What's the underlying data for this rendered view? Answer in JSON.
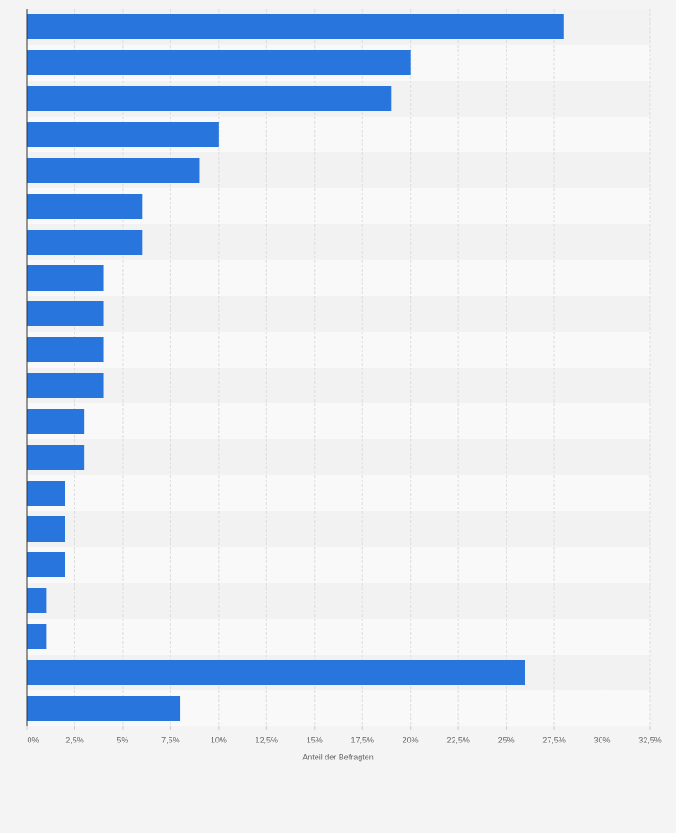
{
  "chart_data": {
    "type": "bar",
    "orientation": "horizontal",
    "categories": [
      null,
      null,
      null,
      null,
      null,
      null,
      null,
      null,
      null,
      null,
      null,
      null,
      null,
      null,
      null,
      null,
      null,
      null,
      null,
      null
    ],
    "values": [
      28,
      20,
      19,
      10,
      9,
      6,
      6,
      4,
      4,
      4,
      4,
      3,
      3,
      2,
      2,
      2,
      1,
      1,
      26,
      8
    ],
    "color": "#2876dd",
    "xlabel": "Anteil der Befragten",
    "xlim": [
      0,
      32.5
    ],
    "xticks": [
      {
        "value": 0,
        "label": "0%"
      },
      {
        "value": 2.5,
        "label": "2,5%"
      },
      {
        "value": 5,
        "label": "5%"
      },
      {
        "value": 7.5,
        "label": "7,5%"
      },
      {
        "value": 10,
        "label": "10%"
      },
      {
        "value": 12.5,
        "label": "12,5%"
      },
      {
        "value": 15,
        "label": "15%"
      },
      {
        "value": 17.5,
        "label": "17,5%"
      },
      {
        "value": 20,
        "label": "20%"
      },
      {
        "value": 22.5,
        "label": "22,5%"
      },
      {
        "value": 25,
        "label": "25%"
      },
      {
        "value": 27.5,
        "label": "27,5%"
      },
      {
        "value": 30,
        "label": "30%"
      },
      {
        "value": 32.5,
        "label": "32,5%"
      }
    ],
    "grid": true
  }
}
